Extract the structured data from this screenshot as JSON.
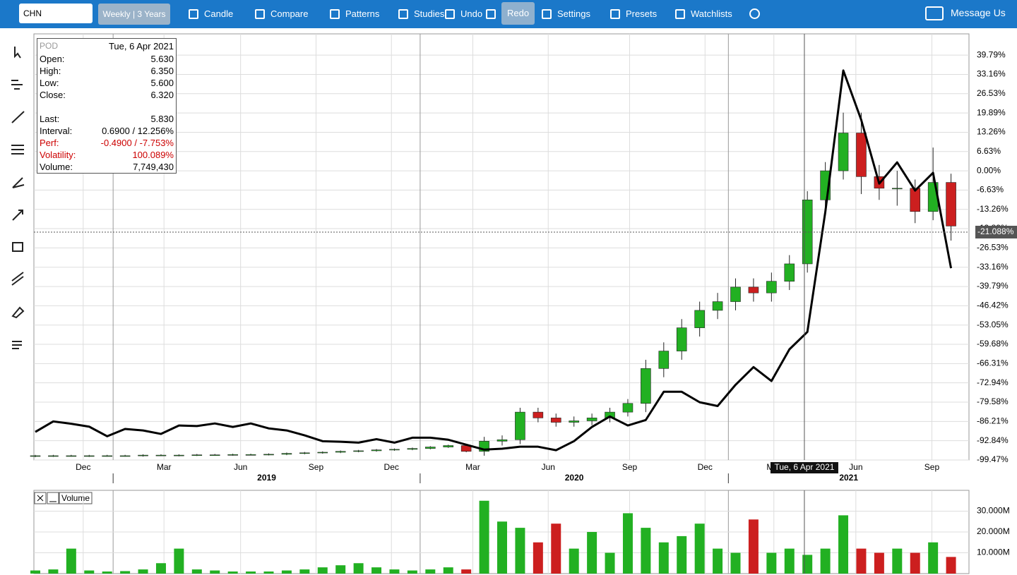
{
  "toolbar": {
    "symbol": "CHN",
    "interval": "Weekly | 3 Years",
    "buttons": [
      "Candle",
      "Compare",
      "Patterns",
      "Studies",
      "Undo",
      "Redo",
      "Settings",
      "Presets",
      "Watchlists"
    ],
    "message": "Message Us"
  },
  "info_box": {
    "symbol": "POD",
    "date": "Tue, 6 Apr 2021",
    "rows": [
      {
        "label": "Open:",
        "value": "5.630"
      },
      {
        "label": "High:",
        "value": "6.350"
      },
      {
        "label": "Low:",
        "value": "5.600"
      },
      {
        "label": "Close:",
        "value": "6.320"
      },
      {
        "label": "Last:",
        "value": "5.830"
      },
      {
        "label": "Interval:",
        "value": "0.6900 / 12.256%"
      },
      {
        "label": "Perf:",
        "value": "-0.4900 / -7.753%"
      },
      {
        "label": "Volatility:",
        "value": "100.089%"
      },
      {
        "label": "Volume:",
        "value": "7,749,430"
      }
    ]
  },
  "chart_data": {
    "type": "candlestick",
    "up_color": "#22b022",
    "down_color": "#cc1f1f",
    "x": [
      0,
      3,
      6,
      9,
      12,
      15,
      18,
      21,
      24,
      27,
      30,
      33,
      36,
      39,
      42,
      45,
      48,
      51,
      54,
      57,
      60,
      63,
      66,
      69,
      72,
      75,
      78,
      81,
      84,
      87,
      90,
      93,
      96,
      99,
      102,
      105,
      108,
      111,
      114,
      117,
      120,
      123,
      126,
      129,
      132,
      135,
      138,
      141,
      144,
      147,
      150,
      153
    ],
    "open": [
      -98.2,
      -98.1,
      -98,
      -98.1,
      -98,
      -98,
      -98,
      -97.8,
      -97.9,
      -97.8,
      -97.7,
      -97.7,
      -97.6,
      -97.6,
      -97.5,
      -97.2,
      -97,
      -96.8,
      -96.5,
      -96.3,
      -96,
      -95.8,
      -95.5,
      -95,
      -94.5,
      -96.5,
      -93,
      -92.5,
      -83,
      -85,
      -86.5,
      -86,
      -85,
      -83,
      -80,
      -68,
      -62,
      -54,
      -48,
      -45,
      -40,
      -42,
      -38,
      -32,
      -10,
      0,
      13,
      -2,
      -6,
      -6,
      -14,
      -4
    ],
    "high": [
      -97.7,
      -97.7,
      -97.7,
      -97.7,
      -97.7,
      -97.7,
      -97.5,
      -97.5,
      -97.5,
      -97.4,
      -97.4,
      -97.3,
      -97.3,
      -97.2,
      -96.9,
      -96.7,
      -96.5,
      -96.2,
      -96,
      -95.7,
      -95.5,
      -95.2,
      -94.7,
      -94.2,
      -94.2,
      -91.5,
      -91,
      -81.5,
      -81.5,
      -83.5,
      -84.5,
      -83.5,
      -81.5,
      -78.5,
      -65,
      -59,
      -51,
      -45,
      -42,
      -37,
      -37,
      -35,
      -29,
      -7,
      3,
      20,
      20,
      2,
      0,
      -3,
      8,
      -1
    ],
    "low": [
      -98.5,
      -98.4,
      -98.3,
      -98.4,
      -98.3,
      -98.3,
      -98.3,
      -98.1,
      -98.2,
      -98.1,
      -98,
      -98,
      -97.9,
      -97.9,
      -97.8,
      -97.5,
      -97.3,
      -97.1,
      -96.8,
      -96.6,
      -96.3,
      -96.1,
      -95.8,
      -95.3,
      -96.8,
      -98,
      -94.5,
      -94,
      -86.5,
      -88,
      -88,
      -87.5,
      -86.5,
      -84.5,
      -83,
      -71,
      -65,
      -57,
      -51,
      -48,
      -45,
      -45,
      -41,
      -35,
      -13,
      -3,
      -8,
      -10,
      -12,
      -18,
      -17,
      -24
    ],
    "close": [
      -98,
      -98,
      -98,
      -98,
      -98,
      -98,
      -97.8,
      -97.8,
      -97.8,
      -97.7,
      -97.7,
      -97.6,
      -97.6,
      -97.5,
      -97.2,
      -97,
      -96.8,
      -96.5,
      -96.3,
      -96,
      -95.8,
      -95.5,
      -95,
      -94.5,
      -96.5,
      -93,
      -92.5,
      -83,
      -85,
      -86.5,
      -86,
      -85,
      -83,
      -80,
      -68,
      -62,
      -54,
      -48,
      -45,
      -40,
      -42,
      -38,
      -32,
      -10,
      0,
      13,
      -2,
      -6,
      -6,
      -14,
      -4,
      -19
    ],
    "compare": {
      "color": "#000000",
      "values": [
        -89.8,
        -86.2,
        -87,
        -88,
        -91.3,
        -88.8,
        -89.3,
        -90.5,
        -87.6,
        -87.8,
        -86.9,
        -88.1,
        -86.9,
        -88.6,
        -89.3,
        -91,
        -93,
        -93.2,
        -93.5,
        -92.3,
        -93.5,
        -91.8,
        -91.8,
        -92.5,
        -94.2,
        -95.9,
        -95.6,
        -94.9,
        -94.9,
        -96.1,
        -93,
        -88.1,
        -84.5,
        -87.6,
        -85.7,
        -76,
        -76,
        -79.6,
        -80.9,
        -73.6,
        -67.5,
        -72.3,
        -61.4,
        -55.4,
        -14.1,
        34.5,
        17.5,
        -4.4,
        2.9,
        -6.8,
        -0.7,
        -33.5
      ]
    },
    "xlim": [
      0,
      156
    ],
    "xticks": [
      {
        "value": 8,
        "label": "Dec"
      },
      {
        "value": 21.5,
        "label": "Mar"
      },
      {
        "value": 34.3,
        "label": "Jun"
      },
      {
        "value": 46.9,
        "label": "Sep"
      },
      {
        "value": 59.5,
        "label": "Dec"
      },
      {
        "value": 73.1,
        "label": "Mar"
      },
      {
        "value": 85.7,
        "label": "Jun"
      },
      {
        "value": 99.3,
        "label": "Sep"
      },
      {
        "value": 111.9,
        "label": "Dec"
      },
      {
        "value": 123.4,
        "label": "Mar"
      },
      {
        "value": 137.1,
        "label": "Jun"
      },
      {
        "value": 149.8,
        "label": "Sep"
      }
    ],
    "year_ticks": [
      {
        "value": 13,
        "label": "2019"
      },
      {
        "value": 64.3,
        "label": "2020"
      },
      {
        "value": 115.8,
        "label": "2021"
      }
    ],
    "ylim": [
      -99.47,
      47.1
    ],
    "yticks": [
      {
        "value": 39.79,
        "label": "39.79%"
      },
      {
        "value": 33.16,
        "label": "33.16%"
      },
      {
        "value": 26.53,
        "label": "26.53%"
      },
      {
        "value": 19.89,
        "label": "19.89%"
      },
      {
        "value": 13.26,
        "label": "13.26%"
      },
      {
        "value": 6.63,
        "label": "6.63%"
      },
      {
        "value": 0,
        "label": "0.00%"
      },
      {
        "value": -6.63,
        "label": "-6.63%"
      },
      {
        "value": -13.26,
        "label": "-13.26%"
      },
      {
        "value": -19.89,
        "label": "-19.89%"
      },
      {
        "value": -26.53,
        "label": "-26.53%"
      },
      {
        "value": -33.16,
        "label": "-33.16%"
      },
      {
        "value": -39.79,
        "label": "-39.79%"
      },
      {
        "value": -46.42,
        "label": "-46.42%"
      },
      {
        "value": -53.05,
        "label": "-53.05%"
      },
      {
        "value": -59.68,
        "label": "-59.68%"
      },
      {
        "value": -66.31,
        "label": "-66.31%"
      },
      {
        "value": -72.94,
        "label": "-72.94%"
      },
      {
        "value": -79.58,
        "label": "-79.58%"
      },
      {
        "value": -86.21,
        "label": "-86.21%"
      },
      {
        "value": -92.84,
        "label": "-92.84%"
      },
      {
        "value": -99.47,
        "label": "-99.47%"
      }
    ],
    "grid": true,
    "crosshair": {
      "x_value": 128.5,
      "x_label": "Tue, 6 Apr 2021",
      "y_value": -21.088,
      "y_label": "-21.088%"
    },
    "volume": {
      "title": "Volume",
      "values": [
        1500000,
        2000000,
        12000000,
        1500000,
        1000000,
        1200000,
        2000000,
        5000000,
        12000000,
        2000000,
        1500000,
        1000000,
        1000000,
        1000000,
        1500000,
        2000000,
        3000000,
        4000000,
        5000000,
        3000000,
        2000000,
        1500000,
        2000000,
        3000000,
        2000000,
        35000000,
        25000000,
        22000000,
        15000000,
        24000000,
        12000000,
        20000000,
        10000000,
        29000000,
        22000000,
        15000000,
        18000000,
        24000000,
        12000000,
        10000000,
        26000000,
        10000000,
        12000000,
        9000000,
        12000000,
        28000000,
        12000000,
        10000000,
        12000000,
        10000000,
        15000000,
        8000000
      ],
      "ylim": [
        0,
        40000000
      ],
      "yticks": [
        {
          "value": 10000000,
          "label": "10.000M"
        },
        {
          "value": 20000000,
          "label": "20.000M"
        },
        {
          "value": 30000000,
          "label": "30.000M"
        }
      ]
    }
  }
}
